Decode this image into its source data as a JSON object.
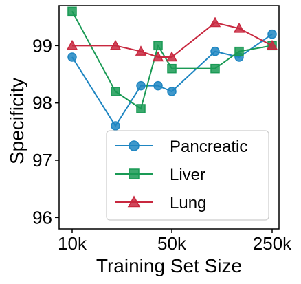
{
  "chart_data": {
    "type": "line",
    "xlabel": "Training Set Size",
    "ylabel": "Specificity",
    "x_ticks": [
      "10k",
      "50k",
      "250k"
    ],
    "y_ticks": [
      96,
      97,
      98,
      99
    ],
    "ylim": [
      95.8,
      99.7
    ],
    "grid": false,
    "legend_position": "lower-right",
    "x": [
      "10k",
      "20k",
      "30k",
      "40k",
      "50k",
      "100k",
      "150k",
      "250k"
    ],
    "series": [
      {
        "name": "Pancreatic",
        "marker": "circle",
        "color": "#1f86c2",
        "values": [
          98.8,
          97.6,
          98.3,
          98.3,
          98.2,
          98.9,
          98.8,
          99.2
        ]
      },
      {
        "name": "Liver",
        "marker": "square",
        "color": "#1a9a55",
        "values": [
          99.6,
          98.2,
          97.9,
          99.0,
          98.6,
          98.6,
          98.9,
          99.0
        ]
      },
      {
        "name": "Lung",
        "marker": "triangle",
        "color": "#c8283f",
        "values": [
          99.0,
          99.0,
          98.9,
          98.8,
          98.8,
          99.4,
          99.3,
          99.0
        ]
      }
    ]
  }
}
